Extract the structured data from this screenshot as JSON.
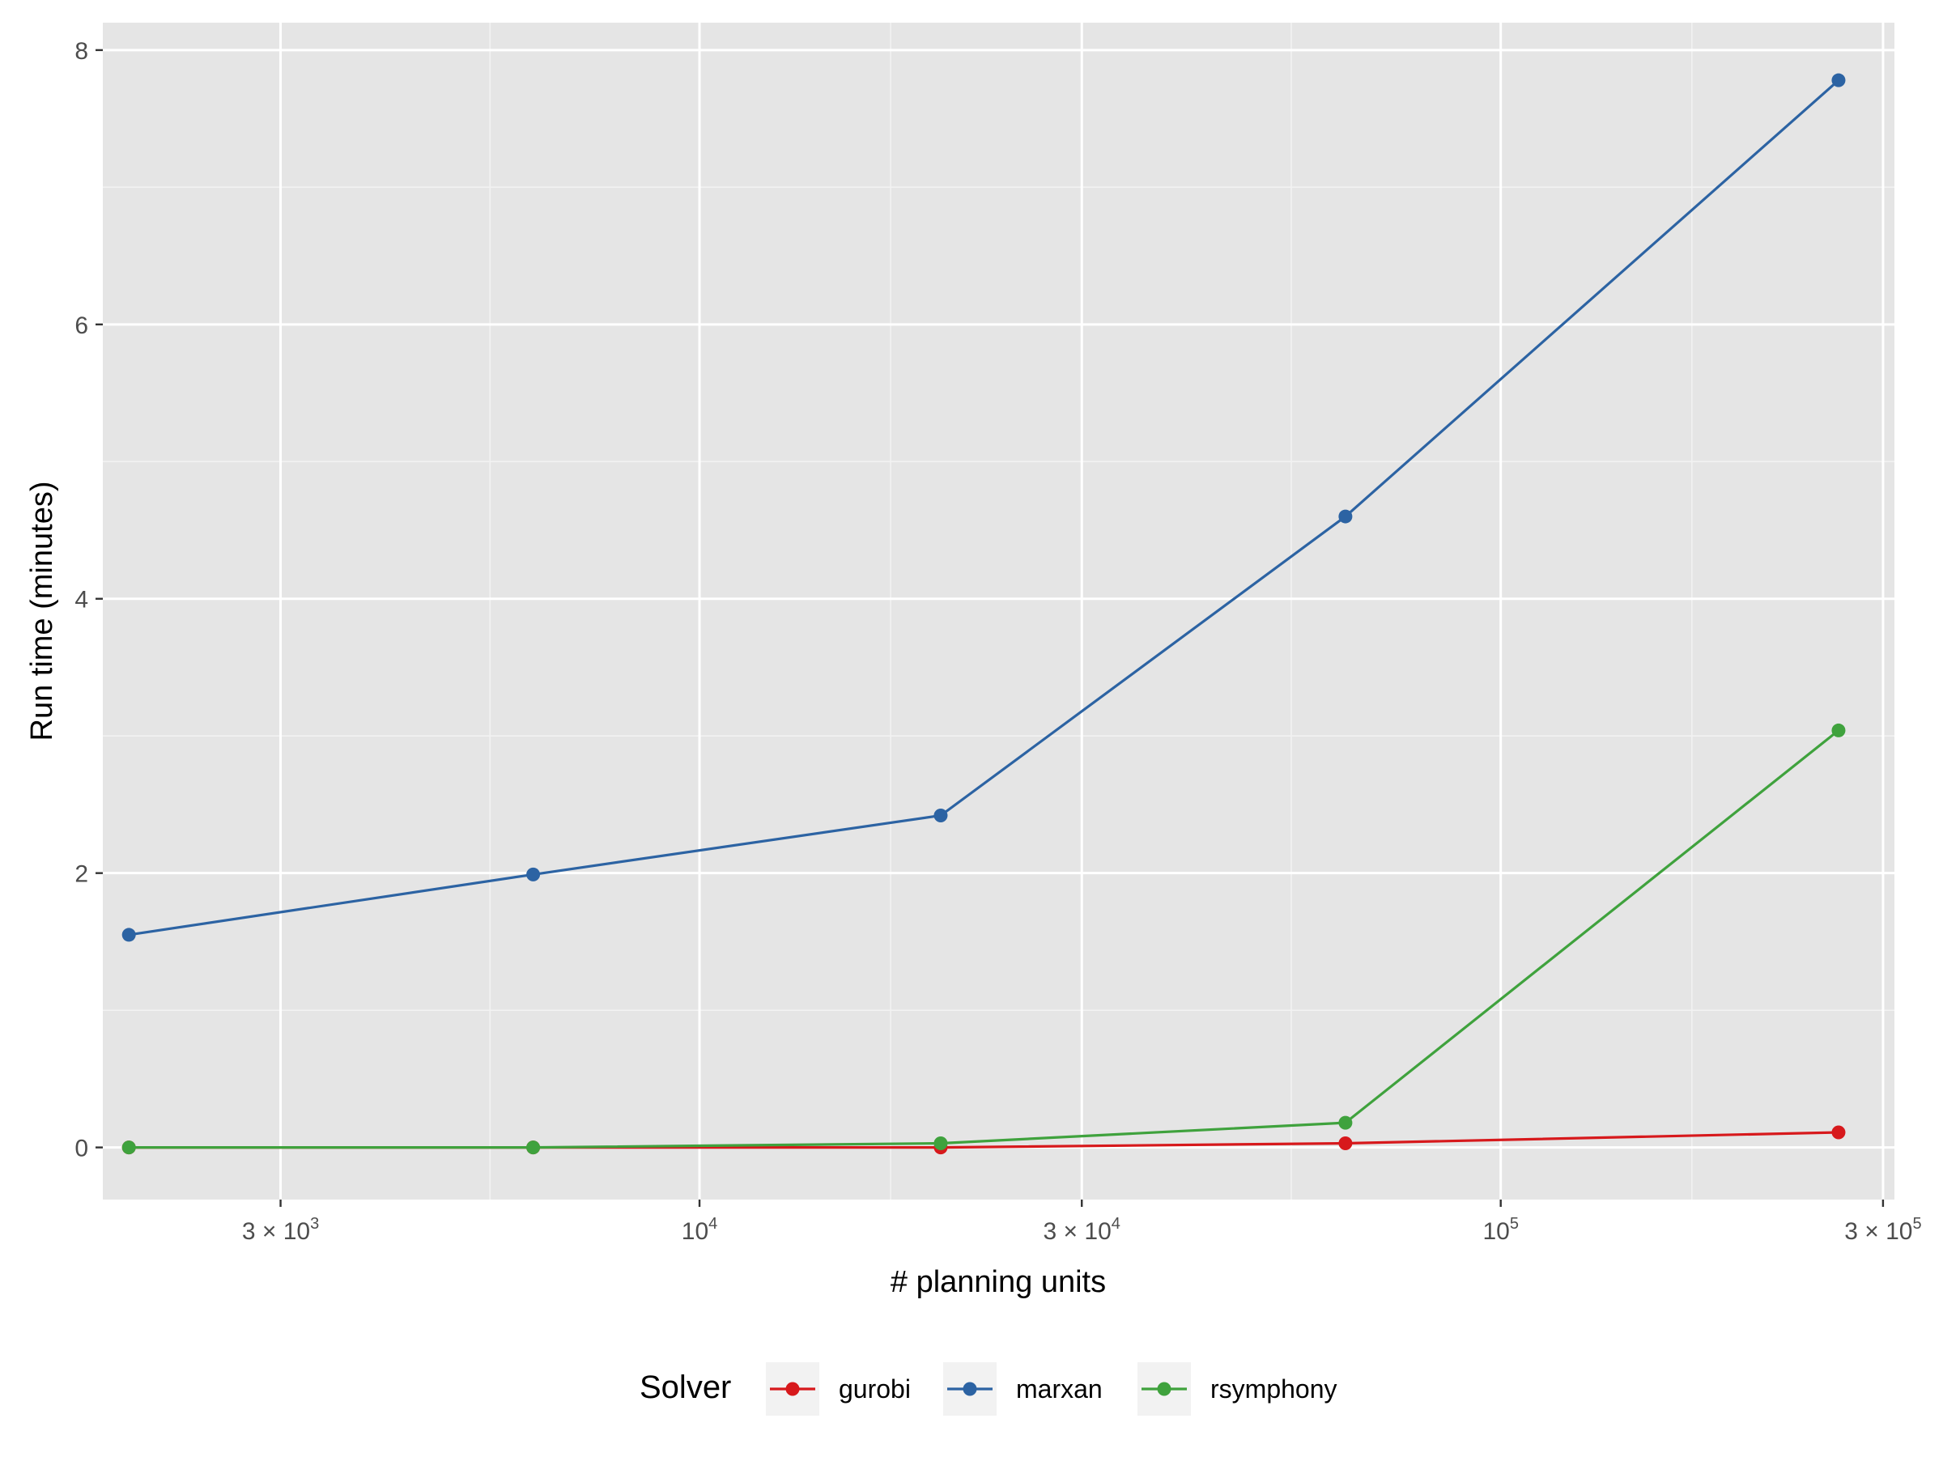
{
  "chart_data": {
    "type": "line",
    "xlabel": "# planning units",
    "ylabel": "Run time (minutes)",
    "x_scale": "log10",
    "xlim": [
      1800,
      310000
    ],
    "ylim": [
      -0.38,
      8.2
    ],
    "x_ticks": [
      {
        "value": 3000,
        "mantissa": "3",
        "times": "×",
        "base": "10",
        "exp": "3"
      },
      {
        "value": 10000,
        "mantissa": "",
        "times": "",
        "base": "10",
        "exp": "4"
      },
      {
        "value": 30000,
        "mantissa": "3",
        "times": "×",
        "base": "10",
        "exp": "4"
      },
      {
        "value": 100000,
        "mantissa": "",
        "times": "",
        "base": "10",
        "exp": "5"
      },
      {
        "value": 300000,
        "mantissa": "3",
        "times": "×",
        "base": "10",
        "exp": "5"
      }
    ],
    "y_ticks": [
      {
        "value": 0,
        "label": "0"
      },
      {
        "value": 2,
        "label": "2"
      },
      {
        "value": 4,
        "label": "4"
      },
      {
        "value": 6,
        "label": "6"
      },
      {
        "value": 8,
        "label": "8"
      }
    ],
    "grid": true,
    "background": "#e5e5e5",
    "legend": {
      "title": "Solver",
      "position": "bottom"
    },
    "x": [
      1940,
      6200,
      20000,
      64000,
      264000
    ],
    "series": [
      {
        "name": "gurobi",
        "color": "#d7191c",
        "values": [
          0.0,
          0.0,
          0.0,
          0.03,
          0.11
        ]
      },
      {
        "name": "marxan",
        "color": "#2c63a3",
        "values": [
          1.55,
          1.99,
          2.42,
          4.6,
          7.78
        ]
      },
      {
        "name": "rsymphony",
        "color": "#3fa23d",
        "values": [
          0.0,
          0.0,
          0.03,
          0.18,
          3.04
        ]
      }
    ]
  }
}
